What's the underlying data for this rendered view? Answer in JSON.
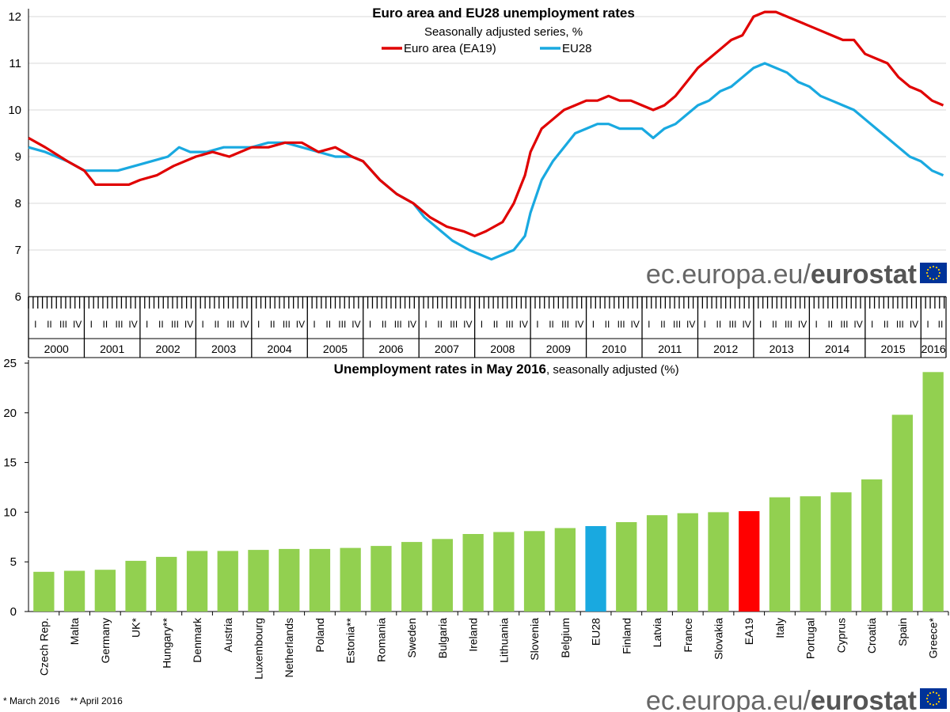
{
  "chart_data": [
    {
      "type": "line",
      "title": "Euro area and EU28 unemployment rates",
      "subtitle": "Seasonally adjusted series, %",
      "ylim": [
        6,
        12
      ],
      "yticks": [
        6,
        7,
        8,
        9,
        10,
        11,
        12
      ],
      "years": [
        "2000",
        "2001",
        "2002",
        "2003",
        "2004",
        "2005",
        "2006",
        "2007",
        "2008",
        "2009",
        "2010",
        "2011",
        "2012",
        "2013",
        "2014",
        "2015",
        "2016"
      ],
      "quarter_labels": [
        "I",
        "II",
        "III",
        "IV"
      ],
      "x_start": 2000.0,
      "x_end": 2016.45,
      "legend": "top-center",
      "series": [
        {
          "name": "Euro area (EA19)",
          "color": "#E00000",
          "points": [
            [
              2000.0,
              9.4
            ],
            [
              2000.3,
              9.2
            ],
            [
              2000.7,
              8.9
            ],
            [
              2001.0,
              8.7
            ],
            [
              2001.2,
              8.4
            ],
            [
              2001.5,
              8.4
            ],
            [
              2001.8,
              8.4
            ],
            [
              2002.0,
              8.5
            ],
            [
              2002.3,
              8.6
            ],
            [
              2002.6,
              8.8
            ],
            [
              2003.0,
              9.0
            ],
            [
              2003.3,
              9.1
            ],
            [
              2003.6,
              9.0
            ],
            [
              2004.0,
              9.2
            ],
            [
              2004.3,
              9.2
            ],
            [
              2004.6,
              9.3
            ],
            [
              2004.9,
              9.3
            ],
            [
              2005.2,
              9.1
            ],
            [
              2005.5,
              9.2
            ],
            [
              2005.8,
              9.0
            ],
            [
              2006.0,
              8.9
            ],
            [
              2006.3,
              8.5
            ],
            [
              2006.6,
              8.2
            ],
            [
              2006.9,
              8.0
            ],
            [
              2007.2,
              7.7
            ],
            [
              2007.5,
              7.5
            ],
            [
              2007.8,
              7.4
            ],
            [
              2008.0,
              7.3
            ],
            [
              2008.2,
              7.4
            ],
            [
              2008.5,
              7.6
            ],
            [
              2008.7,
              8.0
            ],
            [
              2008.9,
              8.6
            ],
            [
              2009.0,
              9.1
            ],
            [
              2009.2,
              9.6
            ],
            [
              2009.4,
              9.8
            ],
            [
              2009.6,
              10.0
            ],
            [
              2009.8,
              10.1
            ],
            [
              2010.0,
              10.2
            ],
            [
              2010.2,
              10.2
            ],
            [
              2010.4,
              10.3
            ],
            [
              2010.6,
              10.2
            ],
            [
              2010.8,
              10.2
            ],
            [
              2011.0,
              10.1
            ],
            [
              2011.2,
              10.0
            ],
            [
              2011.4,
              10.1
            ],
            [
              2011.6,
              10.3
            ],
            [
              2011.8,
              10.6
            ],
            [
              2012.0,
              10.9
            ],
            [
              2012.2,
              11.1
            ],
            [
              2012.4,
              11.3
            ],
            [
              2012.6,
              11.5
            ],
            [
              2012.8,
              11.6
            ],
            [
              2013.0,
              12.0
            ],
            [
              2013.2,
              12.1
            ],
            [
              2013.4,
              12.1
            ],
            [
              2013.6,
              12.0
            ],
            [
              2013.8,
              11.9
            ],
            [
              2014.0,
              11.8
            ],
            [
              2014.2,
              11.7
            ],
            [
              2014.4,
              11.6
            ],
            [
              2014.6,
              11.5
            ],
            [
              2014.8,
              11.5
            ],
            [
              2015.0,
              11.2
            ],
            [
              2015.2,
              11.1
            ],
            [
              2015.4,
              11.0
            ],
            [
              2015.6,
              10.7
            ],
            [
              2015.8,
              10.5
            ],
            [
              2016.0,
              10.4
            ],
            [
              2016.2,
              10.2
            ],
            [
              2016.4,
              10.1
            ]
          ]
        },
        {
          "name": "EU28",
          "color": "#19A9E0",
          "points": [
            [
              2000.0,
              9.2
            ],
            [
              2000.3,
              9.1
            ],
            [
              2000.7,
              8.9
            ],
            [
              2001.0,
              8.7
            ],
            [
              2001.3,
              8.7
            ],
            [
              2001.6,
              8.7
            ],
            [
              2001.9,
              8.8
            ],
            [
              2002.2,
              8.9
            ],
            [
              2002.5,
              9.0
            ],
            [
              2002.7,
              9.2
            ],
            [
              2002.9,
              9.1
            ],
            [
              2003.2,
              9.1
            ],
            [
              2003.5,
              9.2
            ],
            [
              2003.8,
              9.2
            ],
            [
              2004.0,
              9.2
            ],
            [
              2004.3,
              9.3
            ],
            [
              2004.6,
              9.3
            ],
            [
              2004.9,
              9.2
            ],
            [
              2005.2,
              9.1
            ],
            [
              2005.5,
              9.0
            ],
            [
              2005.8,
              9.0
            ],
            [
              2006.0,
              8.9
            ],
            [
              2006.3,
              8.5
            ],
            [
              2006.6,
              8.2
            ],
            [
              2006.9,
              8.0
            ],
            [
              2007.1,
              7.7
            ],
            [
              2007.4,
              7.4
            ],
            [
              2007.6,
              7.2
            ],
            [
              2007.9,
              7.0
            ],
            [
              2008.1,
              6.9
            ],
            [
              2008.3,
              6.8
            ],
            [
              2008.5,
              6.9
            ],
            [
              2008.7,
              7.0
            ],
            [
              2008.9,
              7.3
            ],
            [
              2009.0,
              7.8
            ],
            [
              2009.2,
              8.5
            ],
            [
              2009.4,
              8.9
            ],
            [
              2009.6,
              9.2
            ],
            [
              2009.8,
              9.5
            ],
            [
              2010.0,
              9.6
            ],
            [
              2010.2,
              9.7
            ],
            [
              2010.4,
              9.7
            ],
            [
              2010.6,
              9.6
            ],
            [
              2010.8,
              9.6
            ],
            [
              2011.0,
              9.6
            ],
            [
              2011.2,
              9.4
            ],
            [
              2011.4,
              9.6
            ],
            [
              2011.6,
              9.7
            ],
            [
              2011.8,
              9.9
            ],
            [
              2012.0,
              10.1
            ],
            [
              2012.2,
              10.2
            ],
            [
              2012.4,
              10.4
            ],
            [
              2012.6,
              10.5
            ],
            [
              2012.8,
              10.7
            ],
            [
              2013.0,
              10.9
            ],
            [
              2013.2,
              11.0
            ],
            [
              2013.4,
              10.9
            ],
            [
              2013.6,
              10.8
            ],
            [
              2013.8,
              10.6
            ],
            [
              2014.0,
              10.5
            ],
            [
              2014.2,
              10.3
            ],
            [
              2014.4,
              10.2
            ],
            [
              2014.6,
              10.1
            ],
            [
              2014.8,
              10.0
            ],
            [
              2015.0,
              9.8
            ],
            [
              2015.2,
              9.6
            ],
            [
              2015.4,
              9.4
            ],
            [
              2015.6,
              9.2
            ],
            [
              2015.8,
              9.0
            ],
            [
              2016.0,
              8.9
            ],
            [
              2016.2,
              8.7
            ],
            [
              2016.4,
              8.6
            ]
          ]
        }
      ]
    },
    {
      "type": "bar",
      "title": "Unemployment rates in May 2016",
      "subtitle": ", seasonally adjusted   (%)",
      "ylim": [
        0,
        25
      ],
      "yticks": [
        0,
        5,
        10,
        15,
        20,
        25
      ],
      "categories": [
        "Czech Rep.",
        "Malta",
        "Germany",
        "UK*",
        "Hungary**",
        "Denmark",
        "Austria",
        "Luxembourg",
        "Netherlands",
        "Poland",
        "Estonia**",
        "Romania",
        "Sweden",
        "Bulgaria",
        "Ireland",
        "Lithuania",
        "Slovenia",
        "Belgium",
        "EU28",
        "Finland",
        "Latvia",
        "France",
        "Slovakia",
        "EA19",
        "Italy",
        "Portugal",
        "Cyprus",
        "Croatia",
        "Spain",
        "Greece*"
      ],
      "values": [
        4.0,
        4.1,
        4.2,
        5.1,
        5.5,
        6.1,
        6.1,
        6.2,
        6.3,
        6.3,
        6.4,
        6.6,
        7.0,
        7.3,
        7.8,
        8.0,
        8.1,
        8.4,
        8.6,
        9.0,
        9.7,
        9.9,
        10.0,
        10.1,
        11.5,
        11.6,
        12.0,
        13.3,
        19.8,
        24.1
      ],
      "colors": {
        "default": "#92D050",
        "EU28": "#19A9E0",
        "EA19": "#FF0000"
      }
    }
  ],
  "branding": {
    "prefix": "ec.europa.eu/",
    "name": "eurostat"
  },
  "footnote": "* March 2016    ** April 2016"
}
